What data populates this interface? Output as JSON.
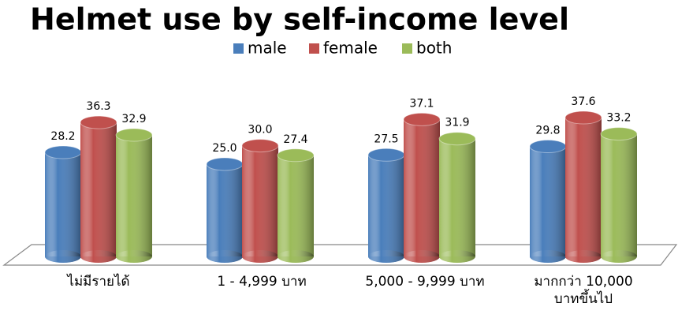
{
  "chart_data": {
    "type": "bar3d",
    "title": "Helmet use by self-income level",
    "categories": [
      "ไม่มีรายได้",
      "1 - 4,999 บาท",
      "5,000 - 9,999 บาท",
      "มากกว่า 10,000 บาทขึ้นไป"
    ],
    "series": [
      {
        "name": "male",
        "color": "#4a7ebb",
        "values": [
          28.2,
          25.0,
          27.5,
          29.8
        ],
        "value_labels": [
          "28.2",
          "25.0",
          "27.5",
          "29.8"
        ]
      },
      {
        "name": "female",
        "color": "#c0504d",
        "values": [
          36.3,
          30.0,
          37.1,
          37.6
        ],
        "value_labels": [
          "36.3",
          "30.0",
          "37.1",
          "37.6"
        ]
      },
      {
        "name": "both",
        "color": "#9bbb59",
        "values": [
          32.9,
          27.4,
          31.9,
          33.2
        ],
        "value_labels": [
          "32.9",
          "27.4",
          "31.9",
          "33.2"
        ]
      }
    ]
  }
}
